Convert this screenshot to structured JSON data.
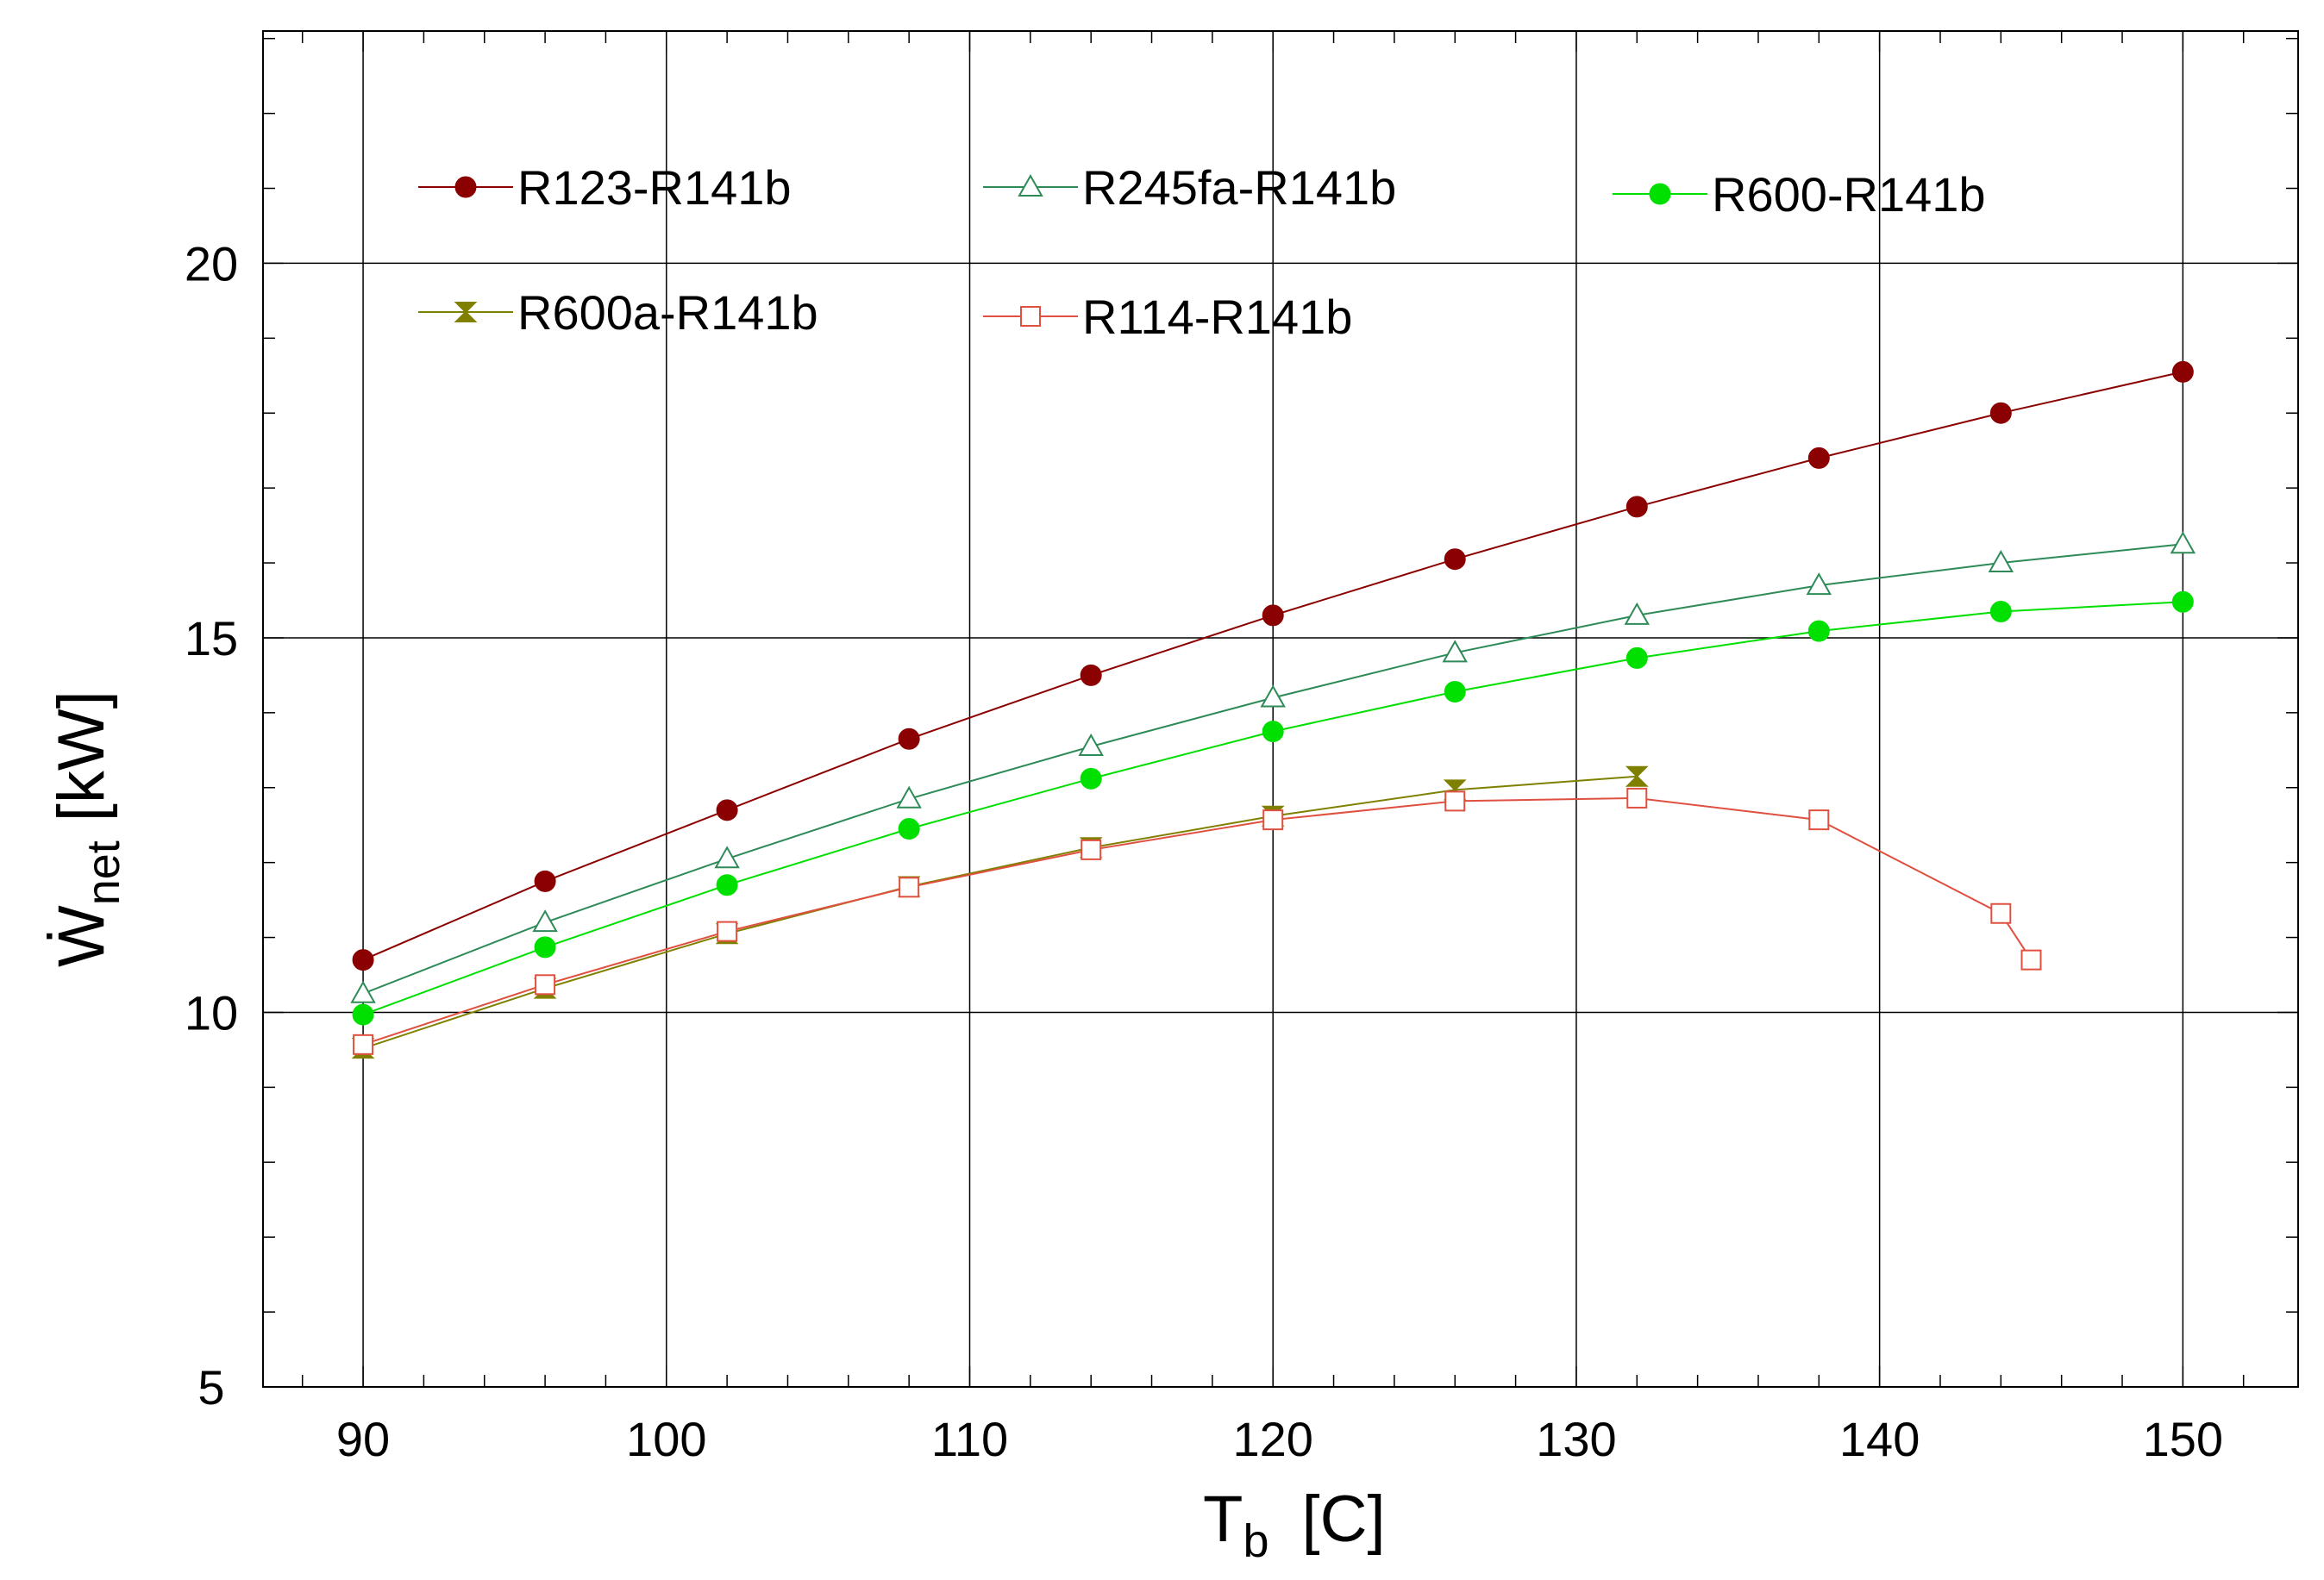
{
  "chart_data": {
    "type": "line",
    "title": "",
    "xlabel": {
      "main": "T",
      "sub": "b",
      "unit": "[C]"
    },
    "ylabel": {
      "main": "Ẇ",
      "sub": "net",
      "unit": "[kW]"
    },
    "xlim": [
      86.7,
      153.8
    ],
    "ylim": [
      5,
      23.1
    ],
    "x_ticks": [
      90,
      100,
      110,
      120,
      130,
      140,
      150
    ],
    "y_ticks": [
      5,
      10,
      15,
      20
    ],
    "x_minor_step": 2,
    "y_minor_step": 1,
    "grid": true,
    "legend_position": "top-left (inside plot)",
    "series": [
      {
        "name": "R123-R141b",
        "color": "#8b0000",
        "marker": "filled-circle",
        "x": [
          90,
          96,
          102,
          108,
          114,
          120,
          126,
          132,
          138,
          144,
          150
        ],
        "y": [
          10.7,
          11.75,
          12.7,
          13.65,
          14.5,
          15.3,
          16.05,
          16.75,
          17.4,
          18.0,
          18.55
        ]
      },
      {
        "name": "R245fa-R141b",
        "color": "#2e8b57",
        "marker": "open-triangle",
        "x": [
          90,
          96,
          102,
          108,
          114,
          120,
          126,
          132,
          138,
          144,
          150
        ],
        "y": [
          10.25,
          11.2,
          12.05,
          12.85,
          13.55,
          14.2,
          14.8,
          15.3,
          15.7,
          16.0,
          16.25
        ]
      },
      {
        "name": "R600-R141b",
        "color": "#00e000",
        "marker": "filled-circle",
        "x": [
          90,
          96,
          102,
          108,
          114,
          120,
          126,
          132,
          138,
          144,
          150
        ],
        "y": [
          9.97,
          10.87,
          11.7,
          12.45,
          13.12,
          13.75,
          14.28,
          14.73,
          15.09,
          15.35,
          15.48
        ]
      },
      {
        "name": "R600a-R141b",
        "color": "#808000",
        "marker": "filled-hourglass",
        "x": [
          90,
          96,
          102,
          108,
          114,
          120,
          126,
          132
        ],
        "y": [
          9.52,
          10.32,
          11.05,
          11.68,
          12.2,
          12.62,
          12.97,
          13.15
        ]
      },
      {
        "name": "R114-R141b",
        "color": "#e05040",
        "marker": "open-square",
        "x": [
          90,
          96,
          102,
          108,
          114,
          120,
          126,
          132,
          138,
          144,
          145
        ],
        "y": [
          9.57,
          10.37,
          11.08,
          11.67,
          12.17,
          12.57,
          12.82,
          12.86,
          12.57,
          11.32,
          10.7
        ]
      }
    ]
  }
}
